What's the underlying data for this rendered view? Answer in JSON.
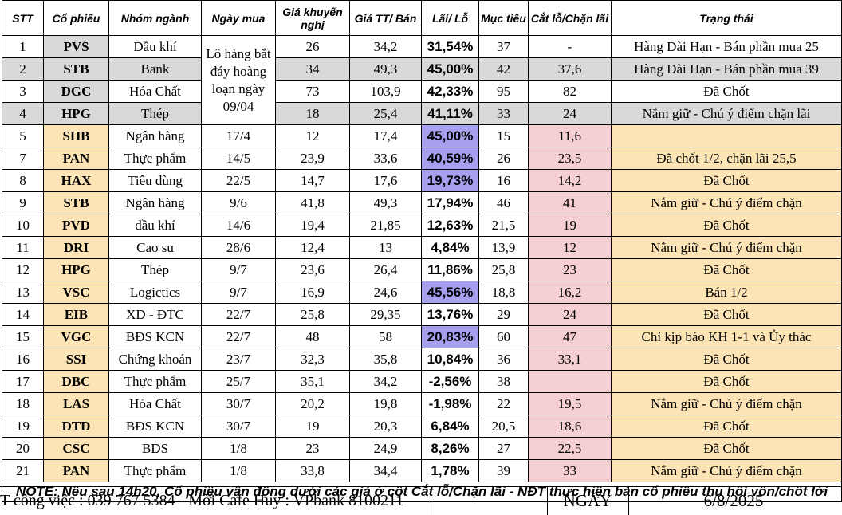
{
  "headers": [
    "STT",
    "Cổ phiếu",
    "Nhóm ngành",
    "Ngày mua",
    "Giá khuyến nghị",
    "Giá TT/ Bán",
    "Lãi/ Lỗ",
    "Mục tiêu",
    "Cắt lỗ/Chặn lãi",
    "Trạng thái"
  ],
  "merged_date": "Lô hàng bắt đáy hoàng loạn ngày 09/04",
  "rows": [
    {
      "stt": "1",
      "code": "PVS",
      "sector": "Dầu khí",
      "date": "",
      "rec": "26",
      "price": "34,2",
      "pct": "31,54%",
      "target": "37",
      "stop": "-",
      "status": "Hàng Dài Hạn - Bán phần mua 25"
    },
    {
      "stt": "2",
      "code": "STB",
      "sector": "Bank",
      "date": "",
      "rec": "34",
      "price": "49,3",
      "pct": "45,00%",
      "target": "42",
      "stop": "37,6",
      "status": "Hàng Dài Hạn - Bán phần mua 39"
    },
    {
      "stt": "3",
      "code": "DGC",
      "sector": "Hóa Chất",
      "date": "",
      "rec": "73",
      "price": "103,9",
      "pct": "42,33%",
      "target": "95",
      "stop": "82",
      "status": "Đã Chốt"
    },
    {
      "stt": "4",
      "code": "HPG",
      "sector": "Thép",
      "date": "",
      "rec": "18",
      "price": "25,4",
      "pct": "41,11%",
      "target": "33",
      "stop": "24",
      "status": "Nắm giữ - Chú ý điểm chặn lãi"
    },
    {
      "stt": "5",
      "code": "SHB",
      "sector": "Ngân hàng",
      "date": "17/4",
      "rec": "12",
      "price": "17,4",
      "pct": "45,00%",
      "target": "15",
      "stop": "11,6",
      "status": ""
    },
    {
      "stt": "7",
      "code": "PAN",
      "sector": "Thực phẩm",
      "date": "14/5",
      "rec": "23,9",
      "price": "33,6",
      "pct": "40,59%",
      "target": "26",
      "stop": "23,5",
      "status": "Đã chốt 1/2, chặn lãi 25,5"
    },
    {
      "stt": "8",
      "code": "HAX",
      "sector": "Tiêu dùng",
      "date": "22/5",
      "rec": "14,7",
      "price": "17,6",
      "pct": "19,73%",
      "target": "16",
      "stop": "14,2",
      "status": "Đã Chốt"
    },
    {
      "stt": "9",
      "code": "STB",
      "sector": "Ngân hàng",
      "date": "9/6",
      "rec": "41,8",
      "price": "49,3",
      "pct": "17,94%",
      "target": "46",
      "stop": "41",
      "status": "Nắm giữ - Chú ý điểm chặn"
    },
    {
      "stt": "10",
      "code": "PVD",
      "sector": "dầu khí",
      "date": "14/6",
      "rec": "19,4",
      "price": "21,85",
      "pct": "12,63%",
      "target": "21,5",
      "stop": "19",
      "status": "Đã Chốt"
    },
    {
      "stt": "11",
      "code": "DRI",
      "sector": "Cao su",
      "date": "28/6",
      "rec": "12,4",
      "price": "13",
      "pct": "4,84%",
      "target": "13,9",
      "stop": "12",
      "status": "Nắm giữ - Chú ý điểm chặn"
    },
    {
      "stt": "12",
      "code": "HPG",
      "sector": "Thép",
      "date": "9/7",
      "rec": "23,6",
      "price": "26,4",
      "pct": "11,86%",
      "target": "25,8",
      "stop": "23",
      "status": "Đã Chốt"
    },
    {
      "stt": "13",
      "code": "VSC",
      "sector": "Logictics",
      "date": "9/7",
      "rec": "16,9",
      "price": "24,6",
      "pct": "45,56%",
      "target": "18,8",
      "stop": "16,2",
      "status": "Bán 1/2"
    },
    {
      "stt": "14",
      "code": "EIB",
      "sector": "XD - ĐTC",
      "date": "22/7",
      "rec": "25,8",
      "price": "29,35",
      "pct": "13,76%",
      "target": "29",
      "stop": "24",
      "status": "Đã Chốt"
    },
    {
      "stt": "15",
      "code": "VGC",
      "sector": "BĐS KCN",
      "date": "22/7",
      "rec": "48",
      "price": "58",
      "pct": "20,83%",
      "target": "60",
      "stop": "47",
      "status": "Chỉ kịp báo KH 1-1 và Ủy thác"
    },
    {
      "stt": "16",
      "code": "SSI",
      "sector": "Chứng khoán",
      "date": "23/7",
      "rec": "32,3",
      "price": "35,8",
      "pct": "10,84%",
      "target": "36",
      "stop": "33,1",
      "status": "Đã Chốt"
    },
    {
      "stt": "17",
      "code": "DBC",
      "sector": "Thực phẩm",
      "date": "25/7",
      "rec": "35,1",
      "price": "34,2",
      "pct": "-2,56%",
      "target": "38",
      "stop": "",
      "status": "Đã Chốt"
    },
    {
      "stt": "18",
      "code": "LAS",
      "sector": "Hóa Chất",
      "date": "30/7",
      "rec": "20,2",
      "price": "19,8",
      "pct": "-1,98%",
      "target": "22",
      "stop": "19,5",
      "status": "Nắm giữ - Chú ý điểm chặn"
    },
    {
      "stt": "19",
      "code": "DTD",
      "sector": "BĐS KCN",
      "date": "30/7",
      "rec": "19",
      "price": "20,3",
      "pct": "6,84%",
      "target": "20,5",
      "stop": "18,6",
      "status": "Đã Chốt"
    },
    {
      "stt": "20",
      "code": "CSC",
      "sector": "BDS",
      "date": "1/8",
      "rec": "23",
      "price": "24,9",
      "pct": "8,26%",
      "target": "27",
      "stop": "22,5",
      "status": "Đã Chốt"
    },
    {
      "stt": "21",
      "code": "PAN",
      "sector": "Thực phẩm",
      "date": "1/8",
      "rec": "33,8",
      "price": "34,4",
      "pct": "1,78%",
      "target": "39",
      "stop": "33",
      "status": "Nắm giữ - Chú ý điểm chặn"
    }
  ],
  "note": "NOTE:  Nếu sau 14h20, Cổ phiếu vận động dưới các giá ở cột Cắt lỗ/Chặn lãi - NĐT thực hiện bán cổ phiếu thu hồi vốn/chốt lời",
  "footer": {
    "contact": "T công việc : 039 767 5384 - Mời Cafe Huy : VPbank 8100211",
    "ngay_label": "NGÀY",
    "date": "6/8/2025"
  },
  "colors": {
    "grey": "#d9d9d9",
    "yellow": "#fce4b6",
    "pink": "#f6cfd2",
    "violet": "#a6a0ef",
    "pct_blue": "#1a2fd8"
  }
}
